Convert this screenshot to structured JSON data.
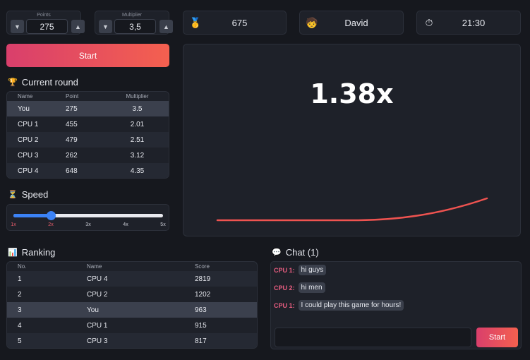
{
  "points": {
    "label": "Points",
    "value": "275",
    "down_icon": "triangle-down",
    "up_icon": "triangle-up"
  },
  "multiplier": {
    "label": "Multiplier",
    "value": "3,5",
    "down_icon": "triangle-down",
    "up_icon": "triangle-up"
  },
  "balance": {
    "icon": "medal-icon",
    "value": "675"
  },
  "player": {
    "icon": "avatar-icon",
    "name": "David"
  },
  "clock": {
    "icon": "stopwatch-icon",
    "time": "21:30"
  },
  "start_label": "Start",
  "current_round": {
    "title": "Current round",
    "icon": "trophy-icon",
    "columns": [
      "Name",
      "Point",
      "Multiplier"
    ],
    "rows": [
      {
        "name": "You",
        "point": "275",
        "multiplier": "3.5",
        "highlight": true
      },
      {
        "name": "CPU 1",
        "point": "455",
        "multiplier": "2.01"
      },
      {
        "name": "CPU 2",
        "point": "479",
        "multiplier": "2.51"
      },
      {
        "name": "CPU 3",
        "point": "262",
        "multiplier": "3.12"
      },
      {
        "name": "CPU 4",
        "point": "648",
        "multiplier": "4.35"
      }
    ]
  },
  "speed": {
    "title": "Speed",
    "icon": "hourglass-icon",
    "ticks": [
      "1x",
      "2x",
      "3x",
      "4x",
      "5x"
    ],
    "selected_index": 1
  },
  "game": {
    "multiplier_display": "1.38x",
    "curve_color": "#ef5350"
  },
  "ranking": {
    "title": "Ranking",
    "icon": "bar-chart-icon",
    "columns": [
      "No.",
      "Name",
      "Score"
    ],
    "rows": [
      {
        "no": "1",
        "name": "CPU 4",
        "score": "2819"
      },
      {
        "no": "2",
        "name": "CPU 2",
        "score": "1202"
      },
      {
        "no": "3",
        "name": "You",
        "score": "963",
        "highlight": true
      },
      {
        "no": "4",
        "name": "CPU 1",
        "score": "915"
      },
      {
        "no": "5",
        "name": "CPU 3",
        "score": "817"
      }
    ]
  },
  "chat": {
    "title": "Chat (1)",
    "icon": "speech-bubble-icon",
    "messages": [
      {
        "sender": "CPU 1:",
        "text": "hi guys"
      },
      {
        "sender": "CPU 2:",
        "text": "hi men"
      },
      {
        "sender": "CPU 1:",
        "text": "I could play this game for hours!"
      }
    ],
    "input_placeholder": "",
    "send_label": "Start"
  },
  "colors": {
    "accent_start": "#d93f6c",
    "accent_end": "#f4604f",
    "slider": "#3b82f6"
  }
}
